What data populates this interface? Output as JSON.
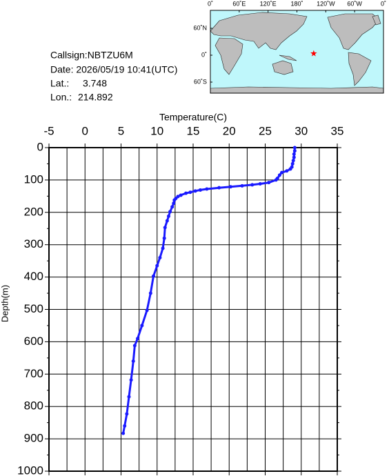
{
  "info": {
    "callsign": "Callsign:NBTZU6M",
    "date": "Date:  2026/05/19 10:41(UTC)",
    "lat_label": "Lat.:",
    "lat": 3.748,
    "lon_label": "Lon.:",
    "lon": 214.892
  },
  "map": {
    "lon_ticks": [
      {
        "value": 0,
        "label": "0˚"
      },
      {
        "value": 60,
        "label": "60˚E"
      },
      {
        "value": 120,
        "label": "120˚E"
      },
      {
        "value": 180,
        "label": "180˚"
      },
      {
        "value": 240,
        "label": "120˚W"
      },
      {
        "value": 300,
        "label": "60˚W"
      },
      {
        "value": 360,
        "label": "0˚"
      }
    ],
    "lat_ticks": [
      {
        "value": 60,
        "label": "60˚N"
      },
      {
        "value": 0,
        "label": "0˚"
      },
      {
        "value": -60,
        "label": "60˚S"
      }
    ],
    "star_color": "#ff0000"
  },
  "chart_data": {
    "type": "line",
    "xlabel": "Temperature(C)",
    "ylabel": "Depth(m)",
    "color": "#1a1aff",
    "xlim": [
      -5,
      35
    ],
    "xticks": [
      -5,
      0,
      5,
      10,
      15,
      20,
      25,
      30,
      35
    ],
    "xgrid": [
      -5,
      -2.5,
      0,
      2.5,
      5,
      7.5,
      10,
      12.5,
      15,
      17.5,
      20,
      22.5,
      25,
      27.5,
      30,
      32.5,
      35
    ],
    "ylim": [
      0,
      1000
    ],
    "yticks": [
      0,
      100,
      200,
      300,
      400,
      500,
      600,
      700,
      800,
      900,
      1000
    ],
    "yminor": [
      50,
      150,
      250,
      350,
      450,
      550,
      650,
      750,
      850,
      950
    ],
    "y_inverted": true,
    "grid": true,
    "x": [
      29.1,
      29.1,
      29.0,
      29.0,
      28.9,
      28.8,
      28.7,
      28.5,
      28.0,
      27.3,
      27.0,
      26.7,
      26.5,
      25.5,
      24.3,
      23.2,
      21.8,
      20.2,
      18.6,
      16.9,
      16.0,
      15.3,
      14.6,
      14.0,
      13.3,
      12.9,
      12.6,
      12.4,
      12.3,
      12.1,
      11.8,
      11.6,
      11.4,
      11.1,
      11.0,
      10.8,
      10.4,
      10.0,
      9.5,
      9.1,
      8.6,
      7.9,
      7.3,
      6.9,
      6.7,
      6.4,
      6.1,
      5.8,
      5.5,
      5.3
    ],
    "values": [
      0,
      10,
      20,
      30,
      40,
      50,
      60,
      66,
      72,
      77,
      85,
      95,
      100,
      108,
      112,
      115,
      118,
      121,
      124,
      128,
      131,
      134,
      138,
      141,
      147,
      151,
      157,
      162,
      172,
      183,
      198,
      212,
      226,
      247,
      280,
      311,
      340,
      365,
      397,
      450,
      503,
      550,
      590,
      612,
      660,
      718,
      770,
      823,
      860,
      883
    ]
  }
}
